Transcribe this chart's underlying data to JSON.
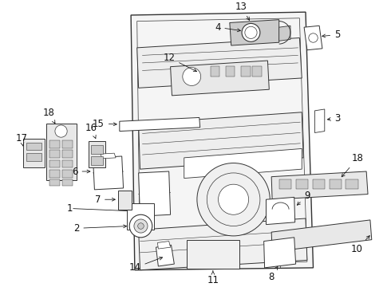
{
  "bg_color": "#ffffff",
  "fig_width": 4.9,
  "fig_height": 3.6,
  "dpi": 100,
  "line_color": "#333333",
  "label_fontsize": 8.5
}
